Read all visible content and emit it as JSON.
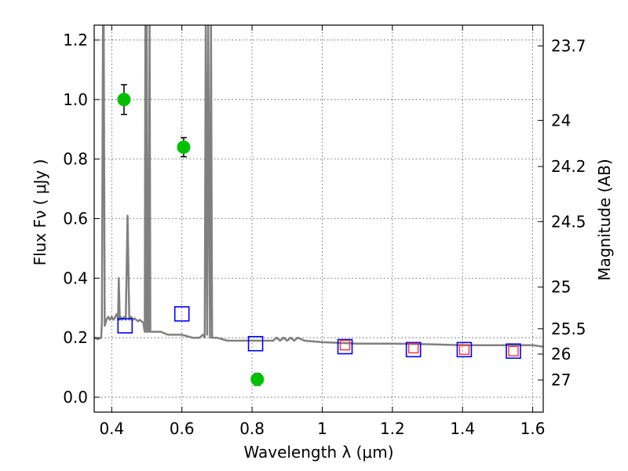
{
  "chart_data": {
    "type": "scatter",
    "xlabel": "Wavelength  λ (μm)",
    "ylabel": "Flux  Fν  ( μJy )",
    "ylabel_right": "Magnitude (AB)",
    "xlim": [
      0.35,
      1.63
    ],
    "ylim": [
      -0.05,
      1.25
    ],
    "grid": true,
    "x_ticks": [
      {
        "value": 0.4,
        "label": "0.4"
      },
      {
        "value": 0.6,
        "label": "0.6"
      },
      {
        "value": 0.8,
        "label": "0.8"
      },
      {
        "value": 1.0,
        "label": "1"
      },
      {
        "value": 1.2,
        "label": "1.2"
      },
      {
        "value": 1.4,
        "label": "1.4"
      },
      {
        "value": 1.6,
        "label": "1.6"
      }
    ],
    "y_ticks": [
      {
        "value": 0.0,
        "label": "0.0"
      },
      {
        "value": 0.2,
        "label": "0.2"
      },
      {
        "value": 0.4,
        "label": "0.4"
      },
      {
        "value": 0.6,
        "label": "0.6"
      },
      {
        "value": 0.8,
        "label": "0.8"
      },
      {
        "value": 1.0,
        "label": "1.0"
      },
      {
        "value": 1.2,
        "label": "1.2"
      }
    ],
    "right_ticks": [
      {
        "label": "23.7",
        "flux": 1.18
      },
      {
        "label": "24",
        "flux": 0.93
      },
      {
        "label": "24.2",
        "flux": 0.775
      },
      {
        "label": "24.5",
        "flux": 0.59
      },
      {
        "label": "25",
        "flux": 0.37
      },
      {
        "label": "25.5",
        "flux": 0.23
      },
      {
        "label": "26",
        "flux": 0.145
      },
      {
        "label": "27",
        "flux": 0.058
      }
    ],
    "series": [
      {
        "style": "line",
        "color": "#808080",
        "x": [
          0.35,
          0.36,
          0.37,
          0.372,
          0.375,
          0.377,
          0.38,
          0.385,
          0.39,
          0.395,
          0.4,
          0.405,
          0.41,
          0.415,
          0.418,
          0.42,
          0.423,
          0.425,
          0.43,
          0.435,
          0.44,
          0.445,
          0.45,
          0.455,
          0.46,
          0.465,
          0.47,
          0.475,
          0.48,
          0.485,
          0.49,
          0.494,
          0.496,
          0.498,
          0.5,
          0.502,
          0.505,
          0.508,
          0.51,
          0.513,
          0.52,
          0.54,
          0.56,
          0.6,
          0.63,
          0.65,
          0.66,
          0.665,
          0.668,
          0.672,
          0.675,
          0.68,
          0.683,
          0.686,
          0.69,
          0.7,
          0.73,
          0.76,
          0.8,
          0.83,
          0.86,
          0.87,
          0.88,
          0.89,
          0.9,
          0.91,
          0.92,
          0.93,
          0.95,
          1.0,
          1.1,
          1.2,
          1.3,
          1.4,
          1.5,
          1.55,
          1.6,
          1.63
        ],
        "y": [
          0.2,
          0.195,
          0.2,
          0.25,
          1.25,
          1.25,
          0.24,
          0.26,
          0.27,
          0.26,
          0.27,
          0.26,
          0.27,
          0.28,
          0.26,
          0.4,
          0.26,
          0.27,
          0.26,
          0.27,
          0.26,
          0.61,
          0.26,
          0.27,
          0.26,
          0.265,
          0.26,
          0.255,
          0.26,
          0.255,
          0.25,
          0.22,
          1.25,
          0.22,
          1.25,
          0.22,
          0.22,
          1.25,
          0.22,
          0.22,
          0.22,
          0.22,
          0.21,
          0.21,
          0.2,
          0.2,
          0.21,
          0.2,
          1.25,
          0.21,
          1.25,
          0.2,
          1.25,
          0.2,
          0.2,
          0.2,
          0.19,
          0.19,
          0.19,
          0.19,
          0.19,
          0.2,
          0.19,
          0.2,
          0.19,
          0.2,
          0.19,
          0.2,
          0.19,
          0.185,
          0.18,
          0.18,
          0.178,
          0.175,
          0.175,
          0.175,
          0.175,
          0.17
        ]
      },
      {
        "style": "circle",
        "color": "#00c000",
        "x": [
          0.435,
          0.605,
          0.815
        ],
        "y": [
          1.0,
          0.84,
          0.06
        ],
        "yerr": [
          0.05,
          0.032,
          0.02
        ]
      },
      {
        "style": "square",
        "color": "#0000ff",
        "x": [
          0.438,
          0.6,
          0.81,
          1.065,
          1.26,
          1.405,
          1.545
        ],
        "y": [
          0.24,
          0.28,
          0.18,
          0.17,
          0.16,
          0.16,
          0.155
        ]
      },
      {
        "style": "square-small",
        "color": "#ff3030",
        "x": [
          1.065,
          1.26,
          1.405,
          1.545
        ],
        "y": [
          0.175,
          0.165,
          0.16,
          0.155
        ]
      }
    ]
  }
}
